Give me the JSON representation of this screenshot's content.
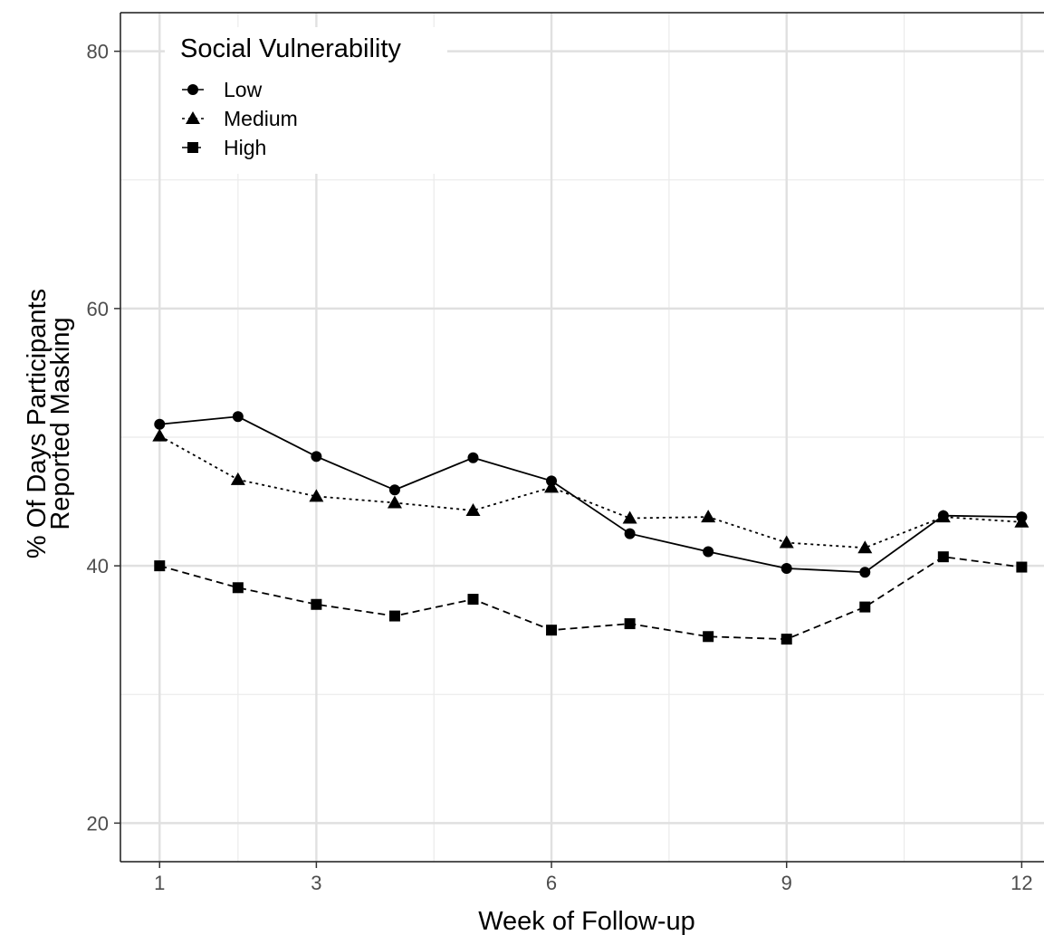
{
  "chart_data": {
    "type": "line",
    "title": "",
    "xlabel": "Week of Follow-up",
    "ylabel_lines": [
      "% Of Days Participants",
      "Reported Masking"
    ],
    "xlim": [
      0.5,
      12.4
    ],
    "ylim": [
      17,
      83
    ],
    "x_ticks": [
      1,
      3,
      6,
      9,
      12
    ],
    "x_minor_ticks": [
      2,
      4.5,
      7.5,
      10.5
    ],
    "y_ticks": [
      20,
      40,
      60,
      80
    ],
    "y_minor_ticks": [
      30,
      50,
      70
    ],
    "grid": true,
    "legend": {
      "title": "Social Vulnerability",
      "position": "top-left"
    },
    "x": [
      1,
      2,
      3,
      4,
      5,
      6,
      7,
      8,
      9,
      10,
      11,
      12
    ],
    "series": [
      {
        "name": "Low",
        "marker": "circle",
        "linestyle": "solid",
        "values": [
          51.0,
          51.6,
          48.5,
          45.9,
          48.4,
          46.6,
          42.5,
          41.1,
          39.8,
          39.5,
          43.9,
          43.8
        ]
      },
      {
        "name": "Medium",
        "marker": "triangle",
        "linestyle": "dotted",
        "values": [
          50.1,
          46.7,
          45.4,
          44.9,
          44.3,
          46.1,
          43.7,
          43.8,
          41.8,
          41.4,
          43.8,
          43.4
        ]
      },
      {
        "name": "High",
        "marker": "square",
        "linestyle": "dashed",
        "values": [
          40.0,
          38.3,
          37.0,
          36.1,
          37.4,
          35.0,
          35.5,
          34.5,
          34.3,
          36.8,
          40.7,
          39.9
        ]
      }
    ]
  }
}
